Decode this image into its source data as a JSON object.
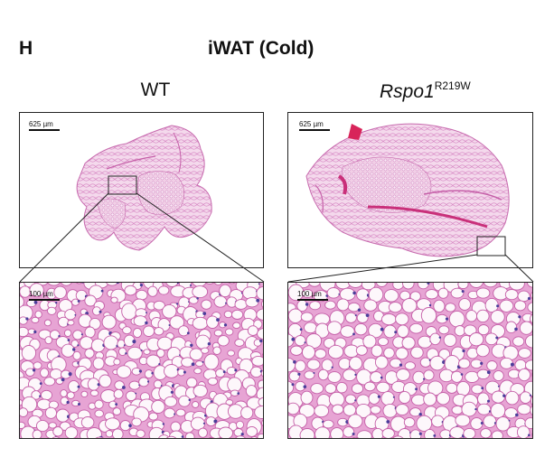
{
  "figure": {
    "panel_letter": "H",
    "title": "iWAT (Cold)",
    "groups": [
      {
        "label": "WT",
        "overview_scale": "625 µm",
        "zoom_scale": "100 µm"
      },
      {
        "label_main": "Rspo1",
        "label_sup": "R219W",
        "overview_scale": "625 µm",
        "zoom_scale": "100 µm"
      }
    ]
  },
  "colors": {
    "tissue_pink": "#e7a4d4",
    "tissue_light": "#f3d6ea",
    "stroma": "#c55fa8",
    "nuclei": "#4b3d9a",
    "vessel_red": "#d8245a",
    "frame": "#222222"
  }
}
